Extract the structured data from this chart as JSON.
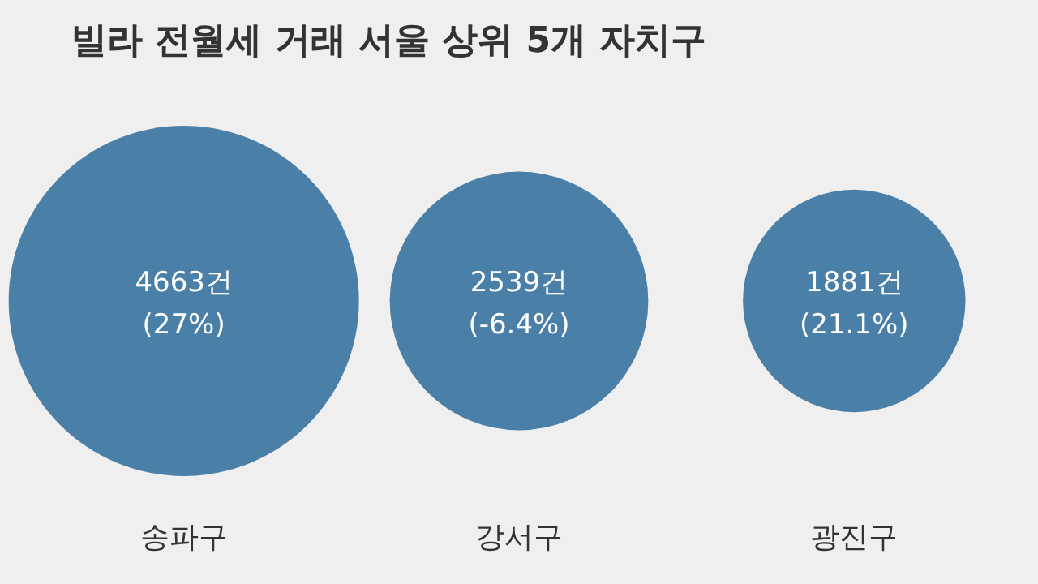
{
  "chart_data": {
    "type": "other",
    "title": "빌라 전월세 거래 서울 상위 5개 자치구",
    "categories": [
      "송파구",
      "강서구",
      "광진구"
    ],
    "values": [
      4663,
      2539,
      1881
    ],
    "value_labels": [
      "4663건",
      "2539건",
      "1881건"
    ],
    "annotations": [
      "(27%)",
      "(-6.4%)",
      "(21.1%)"
    ],
    "color": "#4a7fa8"
  }
}
